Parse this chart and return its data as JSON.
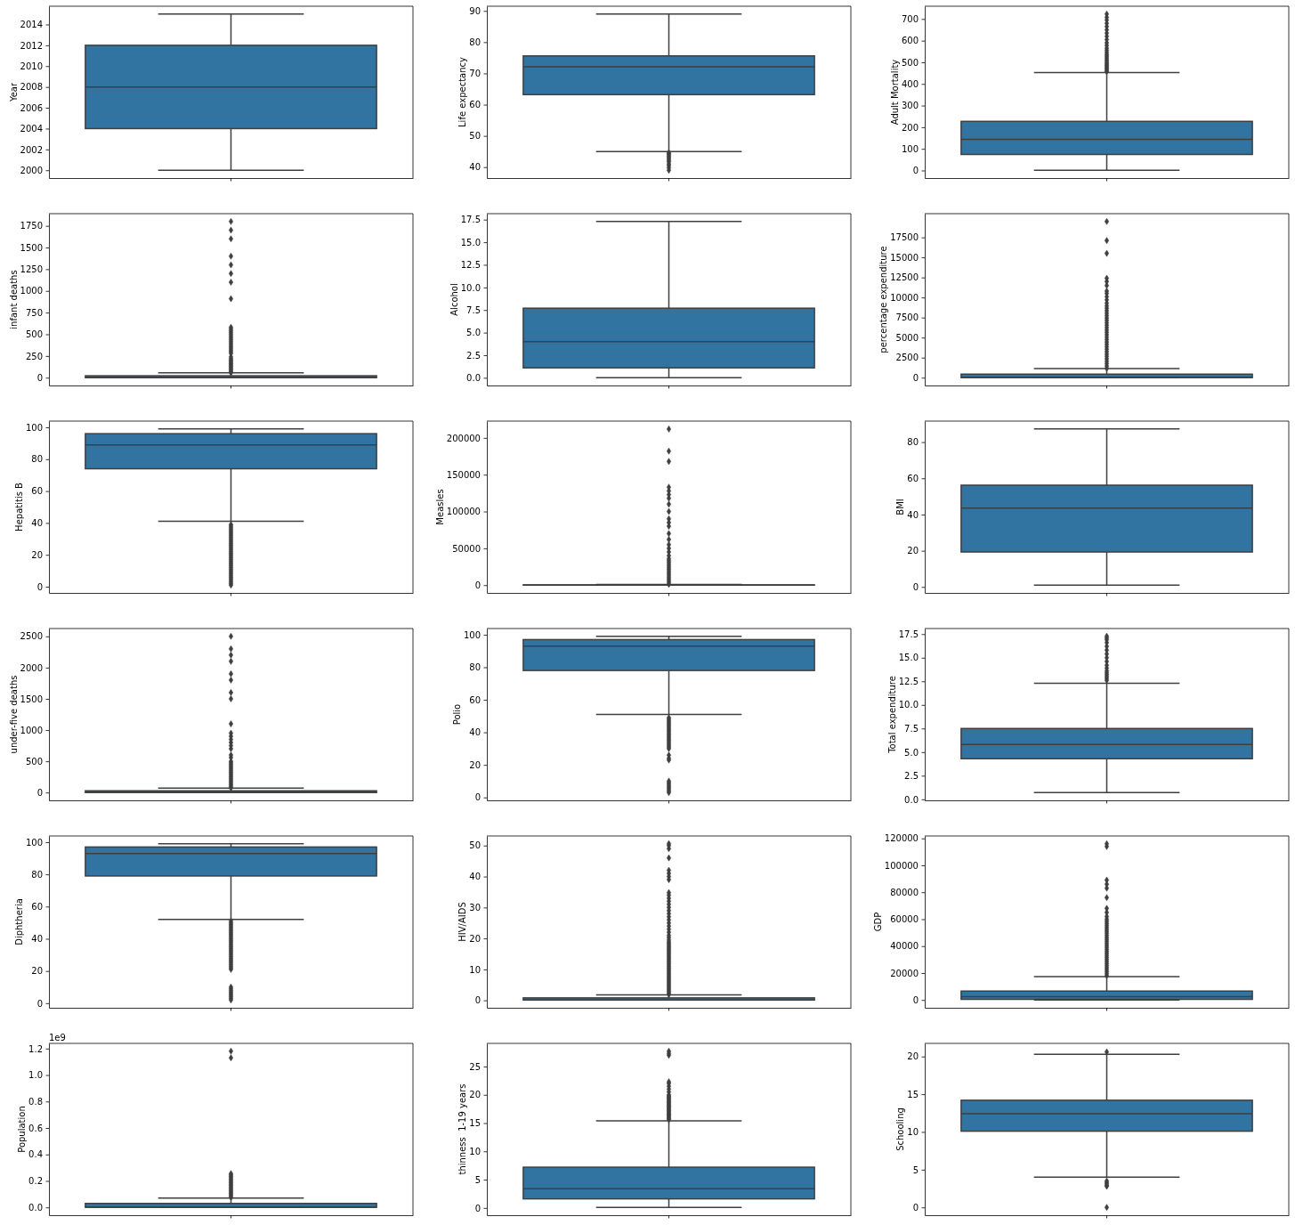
{
  "chart_data": [
    {
      "type": "box",
      "ylabel": "Year",
      "categories": [
        null
      ],
      "color": "#3274a1",
      "tick_labels": "y",
      "boxes": [
        {
          "low": 2000,
          "q1": 2004,
          "median": 2008,
          "q3": 2012,
          "high": 2015
        }
      ],
      "ylim": [
        1999.25,
        2015.75
      ],
      "yticks": [
        2000,
        2002,
        2004,
        2006,
        2008,
        2010,
        2012,
        2014
      ]
    },
    {
      "type": "box",
      "ylabel": "Life expectancy",
      "categories": [
        null
      ],
      "color": "#3274a1",
      "tick_labels": "y",
      "marker": "diamond",
      "boxes": [
        {
          "low": 45,
          "q1": 63.2,
          "median": 72.1,
          "q3": 75.6,
          "high": 89,
          "outliers": [
            44.6,
            44.3,
            44,
            43.5,
            43.1,
            42.6,
            42.1,
            41.7,
            41,
            40.5,
            39.8,
            39
          ]
        }
      ],
      "ylim": [
        36.5,
        91.5
      ],
      "yticks": [
        40,
        50,
        60,
        70,
        80,
        90
      ]
    },
    {
      "type": "box",
      "ylabel": "Adult Mortality",
      "categories": [
        null
      ],
      "color": "#3274a1",
      "tick_labels": "y",
      "marker": "diamond",
      "boxes": [
        {
          "low": 1,
          "q1": 74,
          "median": 144,
          "q3": 227,
          "high": 453,
          "outliers": [
            457,
            462,
            468,
            474,
            480,
            486,
            492,
            498,
            505,
            512,
            520,
            528,
            536,
            545,
            555,
            565,
            578,
            590,
            605,
            620,
            635,
            650,
            665,
            680,
            695,
            708,
            723
          ]
        }
      ],
      "ylim": [
        -35,
        759
      ],
      "yticks": [
        0,
        100,
        200,
        300,
        400,
        500,
        600,
        700
      ]
    },
    {
      "type": "box",
      "ylabel": "infant deaths",
      "categories": [
        null
      ],
      "color": "#3274a1",
      "tick_labels": "y",
      "marker": "diamond",
      "boxes": [
        {
          "low": 0,
          "q1": 0,
          "median": 3,
          "q3": 22,
          "high": 55,
          "outliers": [
            58,
            70,
            85,
            100,
            115,
            130,
            145,
            160,
            175,
            190,
            205,
            220,
            240,
            280,
            300,
            320,
            340,
            360,
            380,
            400,
            420,
            440,
            460,
            480,
            500,
            520,
            540,
            560,
            580,
            910,
            1100,
            1200,
            1300,
            1400,
            1600,
            1700,
            1800
          ]
        }
      ],
      "ylim": [
        -90,
        1890
      ],
      "yticks": [
        0,
        250,
        500,
        750,
        1000,
        1250,
        1500,
        1750
      ]
    },
    {
      "type": "box",
      "ylabel": "Alcohol",
      "categories": [
        null
      ],
      "color": "#3274a1",
      "tick_labels": "y",
      "boxes": [
        {
          "low": 0.01,
          "q1": 1.1,
          "median": 4.0,
          "q3": 7.7,
          "high": 17.3
        }
      ],
      "ylim": [
        -0.85,
        18.16
      ],
      "yticks": [
        {
          "value": 0,
          "label": "0.0"
        },
        2.5,
        {
          "value": 5,
          "label": "5.0"
        },
        7.5,
        {
          "value": 10,
          "label": "10.0"
        },
        12.5,
        {
          "value": 15,
          "label": "15.0"
        },
        17.5
      ]
    },
    {
      "type": "box",
      "ylabel": "percentage expenditure",
      "categories": [
        null
      ],
      "color": "#3274a1",
      "tick_labels": "y",
      "marker": "diamond",
      "boxes": [
        {
          "low": 0,
          "q1": 5,
          "median": 65,
          "q3": 440,
          "high": 1130,
          "outliers": [
            1150,
            1450,
            1750,
            2050,
            2350,
            2650,
            2950,
            3250,
            3550,
            3850,
            4150,
            4450,
            4750,
            5050,
            5350,
            5650,
            5950,
            6250,
            6550,
            6850,
            7150,
            7450,
            7750,
            8050,
            8350,
            8650,
            8950,
            9300,
            9700,
            10100,
            10500,
            10800,
            11500,
            12000,
            12400,
            15500,
            17100,
            19480
          ]
        }
      ],
      "ylim": [
        -974,
        20454
      ],
      "yticks": [
        0,
        2500,
        5000,
        7500,
        10000,
        12500,
        15000,
        17500
      ]
    },
    {
      "type": "box",
      "ylabel": "Hepatitis B",
      "categories": [
        null
      ],
      "color": "#3274a1",
      "tick_labels": "y",
      "marker": "diamond",
      "boxes": [
        {
          "low": 41,
          "q1": 74,
          "median": 89,
          "q3": 96,
          "high": 99,
          "outliers": [
            39,
            38,
            37,
            36,
            35,
            34,
            33,
            32,
            31,
            30,
            29,
            28,
            27,
            26,
            25,
            24,
            23,
            22,
            21,
            20,
            19,
            18,
            17,
            16,
            15,
            14,
            13,
            12,
            11,
            10,
            9,
            8,
            7,
            6,
            5,
            4,
            3,
            2,
            1
          ]
        }
      ],
      "ylim": [
        -3.9,
        103.9
      ],
      "yticks": [
        0,
        20,
        40,
        60,
        80,
        100
      ]
    },
    {
      "type": "box",
      "ylabel": "Measles",
      "categories": [
        null
      ],
      "color": "#3274a1",
      "tick_labels": "y",
      "marker": "diamond",
      "boxes": [
        {
          "low": 0,
          "q1": 0,
          "median": 17,
          "q3": 360,
          "high": 900,
          "outliers": [
            1000,
            3500,
            6000,
            8500,
            11000,
            13500,
            16000,
            18500,
            21000,
            23500,
            26000,
            28500,
            31000,
            33500,
            36000,
            40000,
            45000,
            50000,
            55000,
            62000,
            70000,
            80000,
            85000,
            90000,
            100000,
            110000,
            118000,
            123000,
            128000,
            133000,
            168000,
            182000,
            212000
          ]
        }
      ],
      "ylim": [
        -10600,
        222800
      ],
      "yticks": [
        0,
        50000,
        100000,
        150000,
        200000
      ]
    },
    {
      "type": "box",
      "ylabel": "BMI",
      "categories": [
        null
      ],
      "color": "#3274a1",
      "tick_labels": "y",
      "boxes": [
        {
          "low": 1,
          "q1": 19.3,
          "median": 43.5,
          "q3": 56.2,
          "high": 87.3
        }
      ],
      "ylim": [
        -3.3,
        91.6
      ],
      "yticks": [
        0,
        20,
        40,
        60,
        80
      ]
    },
    {
      "type": "box",
      "ylabel": "under-five deaths",
      "categories": [
        null
      ],
      "color": "#3274a1",
      "tick_labels": "y",
      "marker": "diamond",
      "boxes": [
        {
          "low": 0,
          "q1": 0,
          "median": 4,
          "q3": 28,
          "high": 70,
          "outliers": [
            75,
            100,
            125,
            150,
            175,
            200,
            225,
            250,
            275,
            300,
            325,
            350,
            375,
            400,
            425,
            450,
            475,
            500,
            560,
            600,
            700,
            750,
            800,
            850,
            900,
            950,
            1100,
            1500,
            1600,
            1800,
            1900,
            2100,
            2200,
            2300,
            2500
          ]
        }
      ],
      "ylim": [
        -125,
        2625
      ],
      "yticks": [
        0,
        500,
        1000,
        1500,
        2000,
        2500
      ]
    },
    {
      "type": "box",
      "ylabel": "Polio",
      "categories": [
        null
      ],
      "color": "#3274a1",
      "tick_labels": "y",
      "marker": "diamond",
      "boxes": [
        {
          "low": 51,
          "q1": 78,
          "median": 93,
          "q3": 97,
          "high": 99,
          "outliers": [
            49,
            48,
            47,
            46,
            45,
            44,
            43,
            42,
            41,
            40,
            39,
            38,
            37,
            36,
            35,
            34,
            33,
            32,
            31,
            30,
            26,
            24,
            23,
            10,
            9,
            8,
            7,
            6,
            5,
            4,
            3
          ]
        }
      ],
      "ylim": [
        -1.8,
        103.8
      ],
      "yticks": [
        0,
        20,
        40,
        60,
        80,
        100
      ]
    },
    {
      "type": "box",
      "ylabel": "Total expenditure",
      "categories": [
        null
      ],
      "color": "#3274a1",
      "tick_labels": "y",
      "marker": "diamond",
      "boxes": [
        {
          "low": 0.72,
          "q1": 4.3,
          "median": 5.8,
          "q3": 7.5,
          "high": 12.3,
          "outliers": [
            12.6,
            12.8,
            13.0,
            13.2,
            13.4,
            13.6,
            13.9,
            14.2,
            14.6,
            15.0,
            15.4,
            15.8,
            16.2,
            16.6,
            16.9,
            17.1,
            17.27
          ]
        }
      ],
      "ylim": [
        -0.11,
        18.09
      ],
      "yticks": [
        {
          "value": 0,
          "label": "0.0"
        },
        2.5,
        {
          "value": 5,
          "label": "5.0"
        },
        7.5,
        {
          "value": 10,
          "label": "10.0"
        },
        12.5,
        {
          "value": 15,
          "label": "15.0"
        },
        17.5
      ]
    },
    {
      "type": "box",
      "ylabel": "Diphtheria",
      "categories": [
        null
      ],
      "color": "#3274a1",
      "tick_labels": "y",
      "marker": "diamond",
      "boxes": [
        {
          "low": 52,
          "q1": 79,
          "median": 93,
          "q3": 97,
          "high": 99,
          "outliers": [
            51,
            50,
            49,
            48,
            47,
            46,
            45,
            44,
            43,
            42,
            41,
            40,
            39,
            38,
            37,
            36,
            35,
            34,
            33,
            32,
            31,
            30,
            29,
            28,
            27,
            26,
            25,
            24,
            23,
            22,
            21,
            10,
            9,
            8,
            7,
            6,
            5,
            4,
            3,
            2
          ]
        }
      ],
      "ylim": [
        -2.85,
        103.85
      ],
      "yticks": [
        0,
        20,
        40,
        60,
        80,
        100
      ]
    },
    {
      "type": "box",
      "ylabel": "HIV/AIDS",
      "categories": [
        null
      ],
      "color": "#3274a1",
      "tick_labels": "y",
      "marker": "diamond",
      "boxes": [
        {
          "low": 0.1,
          "q1": 0.1,
          "median": 0.1,
          "q3": 0.8,
          "high": 1.8,
          "outliers": [
            1.9,
            2.4,
            2.9,
            3.4,
            3.9,
            4.4,
            4.9,
            5.4,
            5.9,
            6.4,
            6.9,
            7.4,
            7.9,
            8.4,
            8.9,
            9.4,
            9.9,
            10.4,
            10.9,
            11.4,
            11.9,
            12.4,
            12.9,
            13.4,
            13.9,
            14.4,
            14.9,
            15.4,
            15.9,
            16.4,
            16.9,
            17.4,
            17.9,
            18.4,
            18.9,
            19.5,
            20.3,
            21,
            22,
            23,
            24,
            25,
            26,
            27,
            28,
            29,
            30,
            31,
            32,
            33,
            34,
            34.8,
            39,
            40,
            41,
            42,
            46,
            49,
            50,
            50.6
          ]
        }
      ],
      "ylim": [
        -2.4,
        53.1
      ],
      "yticks": [
        0,
        10,
        20,
        30,
        40,
        50
      ]
    },
    {
      "type": "box",
      "ylabel": "GDP",
      "categories": [
        null
      ],
      "color": "#3274a1",
      "tick_labels": "y",
      "marker": "diamond",
      "boxes": [
        {
          "low": 2,
          "q1": 460,
          "median": 2500,
          "q3": 6600,
          "high": 17400,
          "outliers": [
            18000,
            19500,
            21000,
            22500,
            24000,
            25500,
            27000,
            28500,
            30000,
            31500,
            33000,
            34500,
            36000,
            37500,
            39000,
            40500,
            42000,
            43500,
            45000,
            46500,
            48000,
            49500,
            51000,
            52500,
            54000,
            55500,
            57000,
            58500,
            60000,
            62000,
            65000,
            68000,
            76000,
            83000,
            86000,
            89000,
            114000,
            116000
          ]
        }
      ],
      "ylim": [
        -5800,
        121800
      ],
      "yticks": [
        0,
        20000,
        40000,
        60000,
        80000,
        100000,
        120000
      ]
    },
    {
      "type": "box",
      "ylabel": "Population",
      "categories": [
        null
      ],
      "color": "#3274a1",
      "tick_labels": "y",
      "marker": "diamond",
      "annotations": [
        "1e9"
      ],
      "boxes": [
        {
          "low": 0,
          "q1": 0.0004,
          "median": 0.004,
          "q3": 0.03,
          "high": 0.07,
          "outliers": [
            0.075,
            0.085,
            0.095,
            0.105,
            0.115,
            0.125,
            0.135,
            0.145,
            0.155,
            0.165,
            0.175,
            0.185,
            0.195,
            0.205,
            0.215,
            0.225,
            0.235,
            0.245,
            0.255,
            1.13,
            1.18
          ]
        }
      ],
      "ylim": [
        -0.059,
        1.239
      ],
      "yticks": [
        {
          "value": 0,
          "label": "0.0"
        },
        0.2,
        0.4,
        0.6,
        0.8,
        {
          "value": 1,
          "label": "1.0"
        },
        1.2
      ]
    },
    {
      "type": "box",
      "ylabel": "thinness  1-19 years",
      "categories": [
        null
      ],
      "color": "#3274a1",
      "tick_labels": "y",
      "marker": "diamond",
      "boxes": [
        {
          "low": 0.1,
          "q1": 1.6,
          "median": 3.4,
          "q3": 7.2,
          "high": 15.4,
          "outliers": [
            15.6,
            15.8,
            16.0,
            16.2,
            16.4,
            16.6,
            16.8,
            17.0,
            17.2,
            17.4,
            17.6,
            17.8,
            18.0,
            18.2,
            18.4,
            18.6,
            18.8,
            19.0,
            19.2,
            19.4,
            19.6,
            19.8,
            20.0,
            20.5,
            21,
            21.5,
            22,
            22.3,
            27,
            27.3,
            27.7
          ]
        }
      ],
      "ylim": [
        -1.29,
        29.09
      ],
      "yticks": [
        0,
        5,
        10,
        15,
        20,
        25
      ]
    },
    {
      "type": "box",
      "ylabel": "Schooling",
      "categories": [
        null
      ],
      "color": "#3274a1",
      "tick_labels": "y",
      "marker": "diamond",
      "boxes": [
        {
          "low": 4,
          "q1": 10.1,
          "median": 12.4,
          "q3": 14.2,
          "high": 20.3,
          "outliers": [
            20.6,
            3.5,
            3.3,
            3.1,
            2.9,
            2.8,
            0
          ]
        }
      ],
      "ylim": [
        -1.035,
        21.735
      ],
      "yticks": [
        0,
        5,
        10,
        15,
        20
      ]
    }
  ]
}
